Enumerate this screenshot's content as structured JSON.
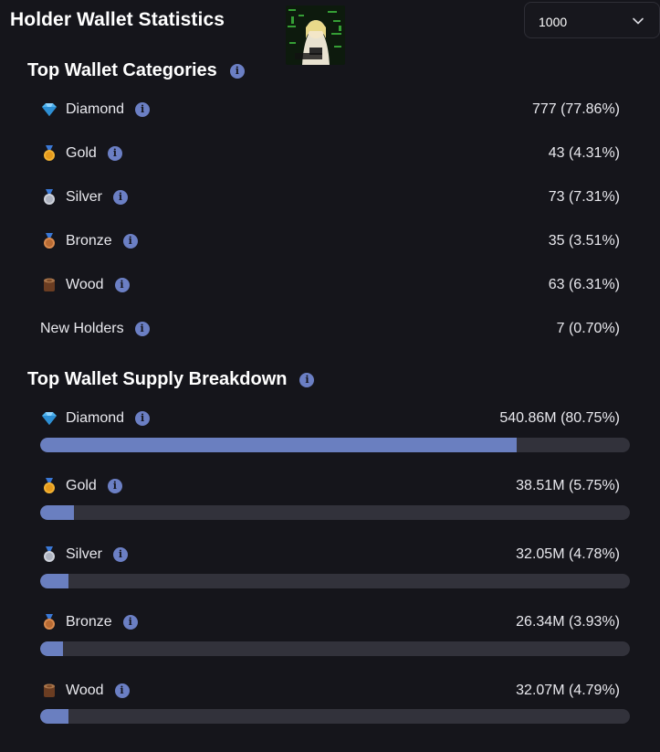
{
  "header": {
    "title": "Holder Wallet Statistics",
    "select_value": "1000"
  },
  "categories": {
    "title": "Top Wallet Categories",
    "rows": [
      {
        "label": "Diamond",
        "value": "777 (77.86%)",
        "icon": "diamond-icon"
      },
      {
        "label": "Gold",
        "value": "43 (4.31%)",
        "icon": "gold-medal-icon"
      },
      {
        "label": "Silver",
        "value": "73 (7.31%)",
        "icon": "silver-medal-icon"
      },
      {
        "label": "Bronze",
        "value": "35 (3.51%)",
        "icon": "bronze-medal-icon"
      },
      {
        "label": "Wood",
        "value": "63 (6.31%)",
        "icon": "wood-icon"
      },
      {
        "label": "New Holders",
        "value": "7 (0.70%)",
        "icon": ""
      }
    ]
  },
  "supply": {
    "title": "Top Wallet Supply Breakdown",
    "rows": [
      {
        "label": "Diamond",
        "value": "540.86M (80.75%)",
        "percent": 80.75
      },
      {
        "label": "Gold",
        "value": "38.51M (5.75%)",
        "percent": 5.75
      },
      {
        "label": "Silver",
        "value": "32.05M (4.78%)",
        "percent": 4.78
      },
      {
        "label": "Bronze",
        "value": "26.34M (3.93%)",
        "percent": 3.93
      },
      {
        "label": "Wood",
        "value": "32.07M (4.79%)",
        "percent": 4.79
      }
    ]
  },
  "colors": {
    "background": "#15151b",
    "accent": "#6a7fc0",
    "track": "#32323b"
  }
}
